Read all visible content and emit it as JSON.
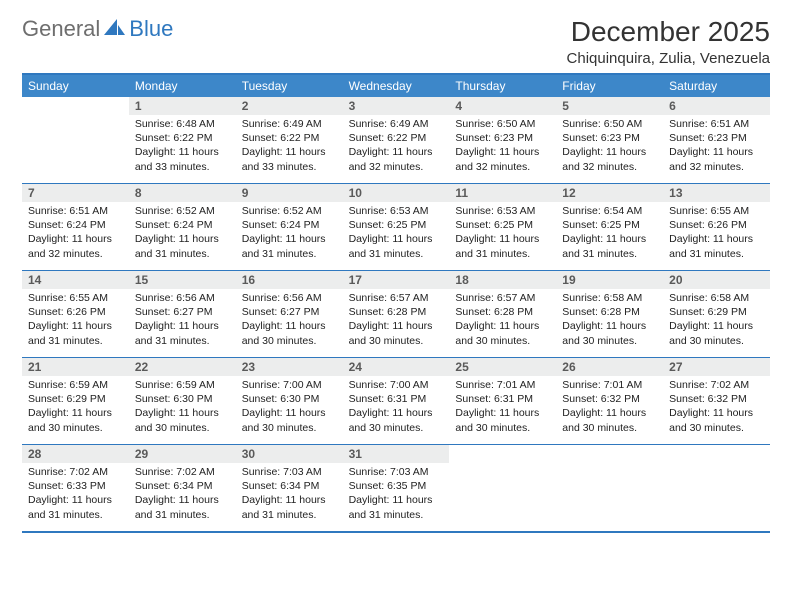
{
  "logo": {
    "text1": "General",
    "text2": "Blue"
  },
  "title": "December 2025",
  "location": "Chiquinquira, Zulia, Venezuela",
  "colors": {
    "header_bg": "#3d87c9",
    "border": "#2f78bf",
    "daynum_bg": "#eceded",
    "daynum_color": "#5a5a5a",
    "logo_gray": "#6e6e6e",
    "logo_blue": "#2f78bf",
    "text": "#222222",
    "bg": "#ffffff"
  },
  "day_names": [
    "Sunday",
    "Monday",
    "Tuesday",
    "Wednesday",
    "Thursday",
    "Friday",
    "Saturday"
  ],
  "weeks": [
    [
      null,
      {
        "n": "1",
        "sr": "Sunrise: 6:48 AM",
        "ss": "Sunset: 6:22 PM",
        "dl": "Daylight: 11 hours and 33 minutes."
      },
      {
        "n": "2",
        "sr": "Sunrise: 6:49 AM",
        "ss": "Sunset: 6:22 PM",
        "dl": "Daylight: 11 hours and 33 minutes."
      },
      {
        "n": "3",
        "sr": "Sunrise: 6:49 AM",
        "ss": "Sunset: 6:22 PM",
        "dl": "Daylight: 11 hours and 32 minutes."
      },
      {
        "n": "4",
        "sr": "Sunrise: 6:50 AM",
        "ss": "Sunset: 6:23 PM",
        "dl": "Daylight: 11 hours and 32 minutes."
      },
      {
        "n": "5",
        "sr": "Sunrise: 6:50 AM",
        "ss": "Sunset: 6:23 PM",
        "dl": "Daylight: 11 hours and 32 minutes."
      },
      {
        "n": "6",
        "sr": "Sunrise: 6:51 AM",
        "ss": "Sunset: 6:23 PM",
        "dl": "Daylight: 11 hours and 32 minutes."
      }
    ],
    [
      {
        "n": "7",
        "sr": "Sunrise: 6:51 AM",
        "ss": "Sunset: 6:24 PM",
        "dl": "Daylight: 11 hours and 32 minutes."
      },
      {
        "n": "8",
        "sr": "Sunrise: 6:52 AM",
        "ss": "Sunset: 6:24 PM",
        "dl": "Daylight: 11 hours and 31 minutes."
      },
      {
        "n": "9",
        "sr": "Sunrise: 6:52 AM",
        "ss": "Sunset: 6:24 PM",
        "dl": "Daylight: 11 hours and 31 minutes."
      },
      {
        "n": "10",
        "sr": "Sunrise: 6:53 AM",
        "ss": "Sunset: 6:25 PM",
        "dl": "Daylight: 11 hours and 31 minutes."
      },
      {
        "n": "11",
        "sr": "Sunrise: 6:53 AM",
        "ss": "Sunset: 6:25 PM",
        "dl": "Daylight: 11 hours and 31 minutes."
      },
      {
        "n": "12",
        "sr": "Sunrise: 6:54 AM",
        "ss": "Sunset: 6:25 PM",
        "dl": "Daylight: 11 hours and 31 minutes."
      },
      {
        "n": "13",
        "sr": "Sunrise: 6:55 AM",
        "ss": "Sunset: 6:26 PM",
        "dl": "Daylight: 11 hours and 31 minutes."
      }
    ],
    [
      {
        "n": "14",
        "sr": "Sunrise: 6:55 AM",
        "ss": "Sunset: 6:26 PM",
        "dl": "Daylight: 11 hours and 31 minutes."
      },
      {
        "n": "15",
        "sr": "Sunrise: 6:56 AM",
        "ss": "Sunset: 6:27 PM",
        "dl": "Daylight: 11 hours and 31 minutes."
      },
      {
        "n": "16",
        "sr": "Sunrise: 6:56 AM",
        "ss": "Sunset: 6:27 PM",
        "dl": "Daylight: 11 hours and 30 minutes."
      },
      {
        "n": "17",
        "sr": "Sunrise: 6:57 AM",
        "ss": "Sunset: 6:28 PM",
        "dl": "Daylight: 11 hours and 30 minutes."
      },
      {
        "n": "18",
        "sr": "Sunrise: 6:57 AM",
        "ss": "Sunset: 6:28 PM",
        "dl": "Daylight: 11 hours and 30 minutes."
      },
      {
        "n": "19",
        "sr": "Sunrise: 6:58 AM",
        "ss": "Sunset: 6:28 PM",
        "dl": "Daylight: 11 hours and 30 minutes."
      },
      {
        "n": "20",
        "sr": "Sunrise: 6:58 AM",
        "ss": "Sunset: 6:29 PM",
        "dl": "Daylight: 11 hours and 30 minutes."
      }
    ],
    [
      {
        "n": "21",
        "sr": "Sunrise: 6:59 AM",
        "ss": "Sunset: 6:29 PM",
        "dl": "Daylight: 11 hours and 30 minutes."
      },
      {
        "n": "22",
        "sr": "Sunrise: 6:59 AM",
        "ss": "Sunset: 6:30 PM",
        "dl": "Daylight: 11 hours and 30 minutes."
      },
      {
        "n": "23",
        "sr": "Sunrise: 7:00 AM",
        "ss": "Sunset: 6:30 PM",
        "dl": "Daylight: 11 hours and 30 minutes."
      },
      {
        "n": "24",
        "sr": "Sunrise: 7:00 AM",
        "ss": "Sunset: 6:31 PM",
        "dl": "Daylight: 11 hours and 30 minutes."
      },
      {
        "n": "25",
        "sr": "Sunrise: 7:01 AM",
        "ss": "Sunset: 6:31 PM",
        "dl": "Daylight: 11 hours and 30 minutes."
      },
      {
        "n": "26",
        "sr": "Sunrise: 7:01 AM",
        "ss": "Sunset: 6:32 PM",
        "dl": "Daylight: 11 hours and 30 minutes."
      },
      {
        "n": "27",
        "sr": "Sunrise: 7:02 AM",
        "ss": "Sunset: 6:32 PM",
        "dl": "Daylight: 11 hours and 30 minutes."
      }
    ],
    [
      {
        "n": "28",
        "sr": "Sunrise: 7:02 AM",
        "ss": "Sunset: 6:33 PM",
        "dl": "Daylight: 11 hours and 31 minutes."
      },
      {
        "n": "29",
        "sr": "Sunrise: 7:02 AM",
        "ss": "Sunset: 6:34 PM",
        "dl": "Daylight: 11 hours and 31 minutes."
      },
      {
        "n": "30",
        "sr": "Sunrise: 7:03 AM",
        "ss": "Sunset: 6:34 PM",
        "dl": "Daylight: 11 hours and 31 minutes."
      },
      {
        "n": "31",
        "sr": "Sunrise: 7:03 AM",
        "ss": "Sunset: 6:35 PM",
        "dl": "Daylight: 11 hours and 31 minutes."
      },
      null,
      null,
      null
    ]
  ]
}
